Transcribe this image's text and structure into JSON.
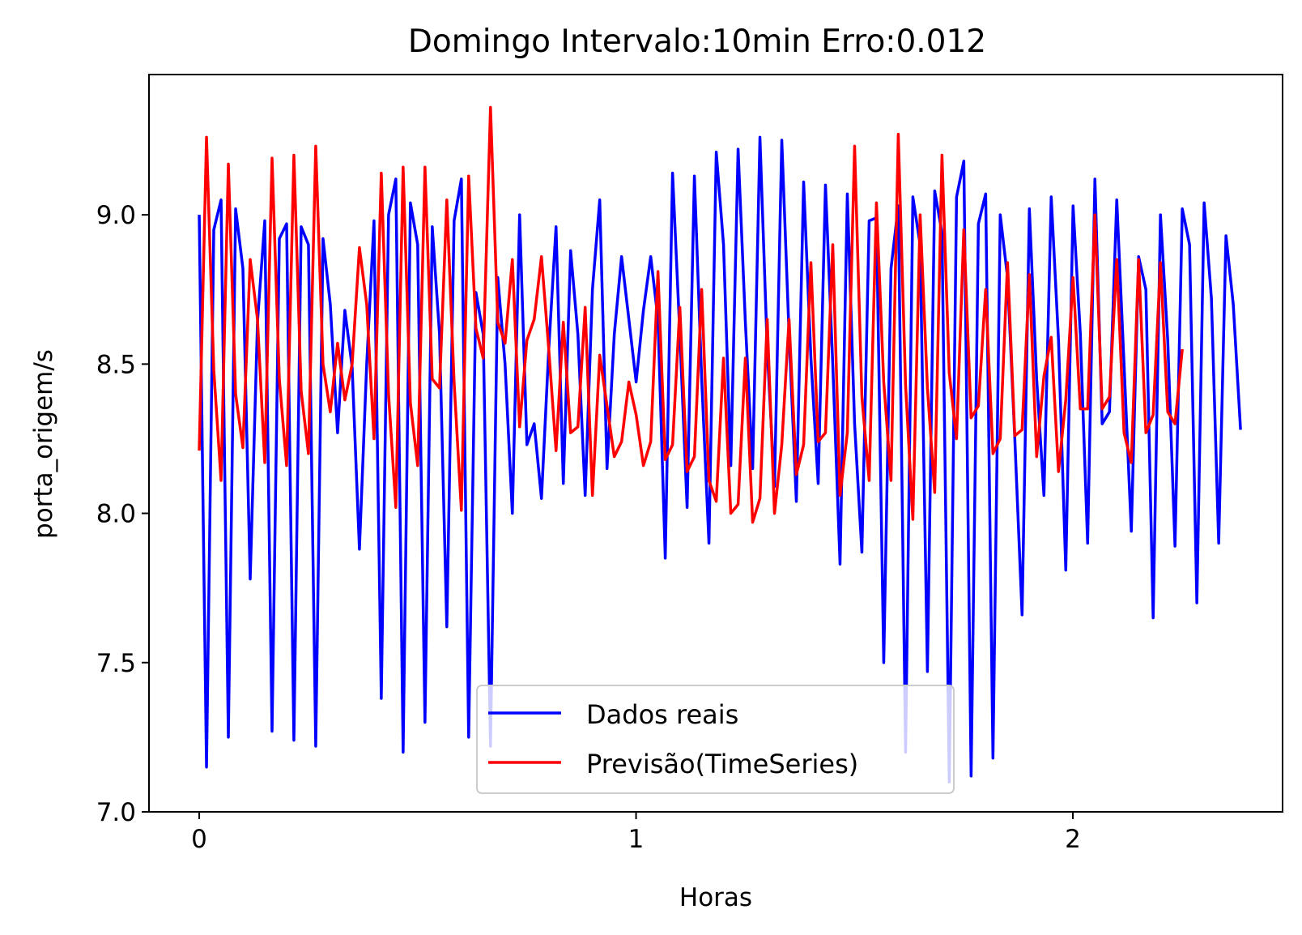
{
  "chart_data": {
    "type": "line",
    "title": "Domingo Intervalo:10min Erro:0.012",
    "xlabel": "Horas",
    "ylabel": "porta_origem/s",
    "xlim": [
      -0.115,
      2.48
    ],
    "ylim": [
      7.0,
      9.47
    ],
    "xticks": [
      0,
      1,
      2
    ],
    "yticks": [
      7.0,
      7.5,
      8.0,
      8.5,
      9.0
    ],
    "ytick_labels": [
      "7.0",
      "7.5",
      "8.0",
      "8.5",
      "9.0"
    ],
    "grid": false,
    "legend_position": "lower center",
    "x_step": 0.01667,
    "series": [
      {
        "name": "Dados reais",
        "color": "#0000ff",
        "values": [
          9.0,
          7.15,
          8.95,
          9.05,
          7.25,
          9.02,
          8.82,
          7.78,
          8.64,
          8.98,
          7.27,
          8.92,
          8.97,
          7.24,
          8.96,
          8.9,
          7.22,
          8.92,
          8.7,
          8.27,
          8.68,
          8.49,
          7.88,
          8.5,
          8.98,
          7.38,
          9.0,
          9.12,
          7.2,
          9.04,
          8.9,
          7.3,
          8.96,
          8.6,
          7.62,
          8.98,
          9.12,
          7.25,
          8.74,
          8.6,
          7.22,
          8.79,
          8.5,
          8.0,
          9.0,
          8.23,
          8.3,
          8.05,
          8.55,
          8.96,
          8.1,
          8.88,
          8.6,
          8.06,
          8.75,
          9.05,
          8.15,
          8.6,
          8.86,
          8.65,
          8.44,
          8.68,
          8.86,
          8.65,
          7.85,
          9.14,
          8.6,
          8.02,
          9.13,
          8.45,
          7.9,
          9.21,
          8.9,
          8.16,
          9.22,
          8.64,
          8.15,
          9.26,
          8.55,
          8.09,
          9.25,
          8.6,
          8.04,
          9.11,
          8.52,
          8.1,
          9.1,
          8.5,
          7.83,
          9.07,
          8.3,
          7.87,
          8.98,
          8.99,
          7.5,
          8.82,
          9.03,
          7.2,
          9.06,
          8.9,
          7.47,
          9.08,
          8.94,
          7.1,
          9.06,
          9.18,
          7.12,
          8.97,
          9.07,
          7.18,
          9.0,
          8.79,
          8.25,
          7.66,
          9.02,
          8.45,
          8.06,
          9.06,
          8.58,
          7.81,
          9.03,
          8.6,
          7.9,
          9.12,
          8.3,
          8.34,
          9.05,
          8.5,
          7.94,
          8.86,
          8.75,
          7.65,
          9.0,
          8.58,
          7.89,
          9.02,
          8.9,
          7.7,
          9.04,
          8.72,
          7.9,
          8.93,
          8.7,
          8.28
        ]
      },
      {
        "name": "Previsão(TimeSeries)",
        "color": "#ff0000",
        "values": [
          8.21,
          9.26,
          8.48,
          8.11,
          9.17,
          8.4,
          8.22,
          8.85,
          8.65,
          8.17,
          9.19,
          8.45,
          8.16,
          9.2,
          8.41,
          8.2,
          9.23,
          8.5,
          8.34,
          8.57,
          8.38,
          8.5,
          8.89,
          8.7,
          8.25,
          9.14,
          8.4,
          8.02,
          9.16,
          8.37,
          8.16,
          9.16,
          8.45,
          8.42,
          9.05,
          8.44,
          8.01,
          9.13,
          8.62,
          8.52,
          9.36,
          8.64,
          8.57,
          8.85,
          8.29,
          8.58,
          8.65,
          8.86,
          8.55,
          8.21,
          8.64,
          8.27,
          8.29,
          8.69,
          8.06,
          8.53,
          8.36,
          8.19,
          8.24,
          8.44,
          8.33,
          8.16,
          8.24,
          8.81,
          8.18,
          8.23,
          8.69,
          8.14,
          8.19,
          8.75,
          8.11,
          8.04,
          8.52,
          8.0,
          8.03,
          8.52,
          7.97,
          8.05,
          8.65,
          8.0,
          8.23,
          8.65,
          8.13,
          8.23,
          8.84,
          8.24,
          8.27,
          8.9,
          8.06,
          8.27,
          9.23,
          8.39,
          8.11,
          9.04,
          8.44,
          8.11,
          9.27,
          8.43,
          7.98,
          9.0,
          8.42,
          8.07,
          9.2,
          8.47,
          8.25,
          8.95,
          8.32,
          8.36,
          8.75,
          8.2,
          8.25,
          8.84,
          8.26,
          8.28,
          8.8,
          8.19,
          8.46,
          8.59,
          8.14,
          8.38,
          8.79,
          8.35,
          8.35,
          9.0,
          8.35,
          8.39,
          8.85,
          8.27,
          8.17,
          8.85,
          8.27,
          8.33,
          8.84,
          8.34,
          8.3,
          8.55
        ]
      }
    ]
  }
}
